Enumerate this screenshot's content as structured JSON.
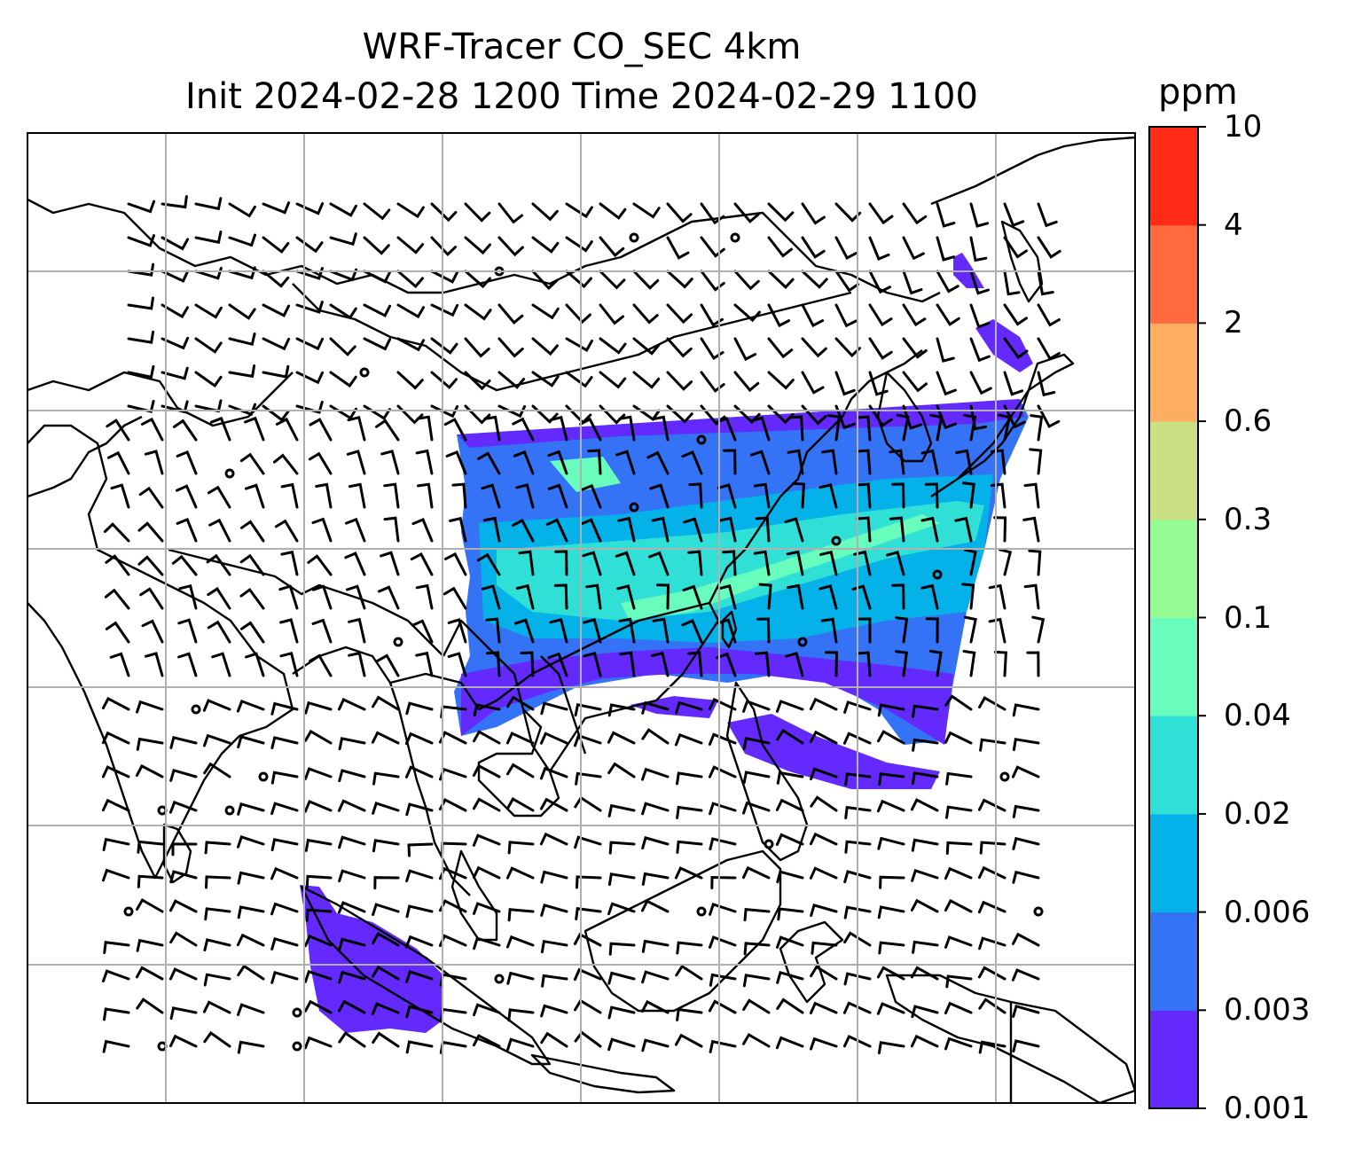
{
  "title": {
    "line1": "WRF-Tracer CO_SEC 4km",
    "line2": "Init 2024-02-28 1200 Time 2024-02-29 1100"
  },
  "colorbar": {
    "unit": "ppm",
    "levels": [
      "0.001",
      "0.003",
      "0.006",
      "0.02",
      "0.04",
      "0.1",
      "0.3",
      "0.6",
      "2",
      "4",
      "10"
    ],
    "colors": [
      "#6329fd",
      "#3473f5",
      "#05b1e9",
      "#30e0d6",
      "#68fcbd",
      "#97fb94",
      "#cbe085",
      "#fdae61",
      "#ff6b3e",
      "#ff2a17"
    ]
  },
  "map": {
    "gridlines": true,
    "coastline_color": "#000000",
    "grid_color": "#b0b0b0",
    "tracer_field": "CO_SEC",
    "wind_barbs": true
  }
}
